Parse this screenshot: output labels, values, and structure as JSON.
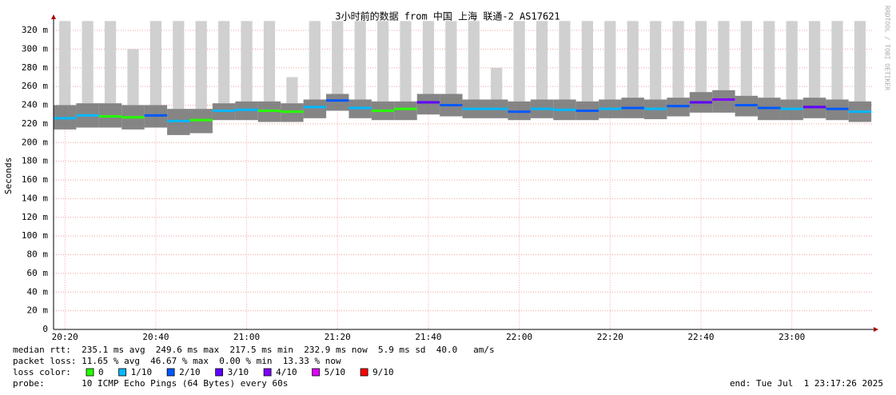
{
  "chart_data": {
    "type": "smokeping",
    "title": "3小时前的数据 from 中国 上海 联通-2 AS17621",
    "y_label": "Seconds",
    "side_text": "RRDTOOL / TOBI OETIKER",
    "ylim": [
      0,
      0.33
    ],
    "yticks": [
      0,
      {
        "value": 0.02,
        "label": "20 m"
      },
      {
        "value": 0.04,
        "label": "40 m"
      },
      {
        "value": 0.06,
        "label": "60 m"
      },
      {
        "value": 0.08,
        "label": "80 m"
      },
      {
        "value": 0.1,
        "label": "100 m"
      },
      {
        "value": 0.12,
        "label": "120 m"
      },
      {
        "value": 0.14,
        "label": "140 m"
      },
      {
        "value": 0.16,
        "label": "160 m"
      },
      {
        "value": 0.18,
        "label": "180 m"
      },
      {
        "value": 0.2,
        "label": "200 m"
      },
      {
        "value": 0.22,
        "label": "220 m"
      },
      {
        "value": 0.24,
        "label": "240 m"
      },
      {
        "value": 0.26,
        "label": "260 m"
      },
      {
        "value": 0.28,
        "label": "280 m"
      },
      {
        "value": 0.3,
        "label": "300 m"
      },
      {
        "value": 0.32,
        "label": "320 m"
      }
    ],
    "xlim": [
      "20:17:30",
      "23:18:00"
    ],
    "xticks": [
      "20:20",
      "20:40",
      "21:00",
      "21:20",
      "21:40",
      "22:00",
      "22:20",
      "22:40",
      "23:00"
    ],
    "grid": true,
    "x": [
      "20:20",
      "20:25",
      "20:30",
      "20:35",
      "20:40",
      "20:45",
      "20:50",
      "20:55",
      "21:00",
      "21:05",
      "21:10",
      "21:15",
      "21:20",
      "21:25",
      "21:30",
      "21:35",
      "21:40",
      "21:45",
      "21:50",
      "21:55",
      "22:00",
      "22:05",
      "22:10",
      "22:15",
      "22:20",
      "22:25",
      "22:30",
      "22:35",
      "22:40",
      "22:45",
      "22:50",
      "22:55",
      "23:00",
      "23:05",
      "23:10",
      "23:15"
    ],
    "median": [
      0.226,
      0.229,
      0.228,
      0.227,
      0.229,
      0.223,
      0.224,
      0.234,
      0.235,
      0.234,
      0.233,
      0.238,
      0.245,
      0.237,
      0.234,
      0.236,
      0.243,
      0.24,
      0.236,
      0.236,
      0.233,
      0.236,
      0.235,
      0.234,
      0.236,
      0.237,
      0.236,
      0.239,
      0.243,
      0.246,
      0.24,
      0.237,
      0.236,
      0.238,
      0.236,
      0.233
    ],
    "loss": [
      1,
      1,
      0,
      0,
      2,
      1,
      0,
      1,
      1,
      0,
      0,
      1,
      2,
      1,
      0,
      0,
      3,
      2,
      1,
      1,
      2,
      1,
      1,
      2,
      1,
      2,
      1,
      2,
      3,
      4,
      2,
      2,
      1,
      3,
      2,
      1
    ],
    "smoke_min": [
      0.214,
      0.216,
      0.216,
      0.214,
      0.216,
      0.208,
      0.21,
      0.224,
      0.224,
      0.222,
      0.222,
      0.226,
      0.234,
      0.226,
      0.224,
      0.224,
      0.23,
      0.228,
      0.226,
      0.226,
      0.224,
      0.226,
      0.224,
      0.224,
      0.226,
      0.226,
      0.225,
      0.228,
      0.232,
      0.232,
      0.228,
      0.224,
      0.224,
      0.226,
      0.224,
      0.222
    ],
    "smoke_max": [
      0.24,
      0.242,
      0.242,
      0.24,
      0.24,
      0.236,
      0.236,
      0.242,
      0.244,
      0.244,
      0.242,
      0.246,
      0.252,
      0.246,
      0.244,
      0.244,
      0.252,
      0.252,
      0.246,
      0.246,
      0.244,
      0.246,
      0.246,
      0.244,
      0.246,
      0.248,
      0.246,
      0.248,
      0.254,
      0.256,
      0.25,
      0.248,
      0.246,
      0.248,
      0.246,
      0.244
    ],
    "upper": [
      0.33,
      0.33,
      0.33,
      0.3,
      0.33,
      0.33,
      0.33,
      0.33,
      0.33,
      0.33,
      0.27,
      0.33,
      0.33,
      0.33,
      0.33,
      0.33,
      0.33,
      0.33,
      0.33,
      0.28,
      0.33,
      0.33,
      0.33,
      0.33,
      0.33,
      0.33,
      0.33,
      0.33,
      0.33,
      0.33,
      0.33,
      0.33,
      0.33,
      0.33,
      0.33,
      0.33
    ],
    "loss_legend": {
      "label": "loss color:",
      "entries": [
        {
          "name": "0",
          "color": "#26ff00"
        },
        {
          "name": "1/10",
          "color": "#00b8ff"
        },
        {
          "name": "2/10",
          "color": "#0059ff"
        },
        {
          "name": "3/10",
          "color": "#5e00ff"
        },
        {
          "name": "4/10",
          "color": "#7e00ff"
        },
        {
          "name": "5/10",
          "color": "#dd00ff"
        },
        {
          "name": "9/10",
          "color": "#ff0000"
        }
      ]
    },
    "stats": [
      "median rtt:  235.1 ms avg  249.6 ms max  217.5 ms min  232.9 ms now  5.9 ms sd  40.0   am/s",
      "packet loss: 11.65 % avg  46.67 % max  0.00 % min  13.33 % now"
    ],
    "probe": "probe:       10 ICMP Echo Pings (64 Bytes) every 60s",
    "end": "end: Tue Jul  1 23:17:26 2025"
  }
}
